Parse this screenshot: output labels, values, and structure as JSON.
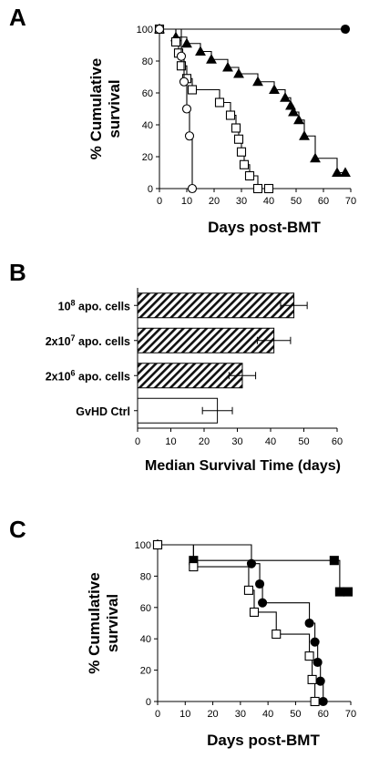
{
  "panels": {
    "a": {
      "letter": "A"
    },
    "b": {
      "letter": "B"
    },
    "c": {
      "letter": "C"
    }
  },
  "chart_data": [
    {
      "id": "A",
      "type": "line",
      "step": true,
      "xlabel": "Days post-BMT",
      "ylabel": "% Cumulative survival",
      "xlim": [
        0,
        70
      ],
      "ylim": [
        0,
        100
      ],
      "xticks": [
        0,
        10,
        20,
        30,
        40,
        50,
        60,
        70
      ],
      "yticks": [
        0,
        20,
        40,
        60,
        80,
        100
      ],
      "series": [
        {
          "marker": "filled-circle",
          "x": [
            0,
            68
          ],
          "y": [
            100,
            100
          ]
        },
        {
          "marker": "filled-triangle",
          "x": [
            0,
            6,
            10,
            15,
            19,
            25,
            29,
            36,
            42,
            46,
            48,
            49,
            51,
            53,
            57,
            65,
            68
          ],
          "y": [
            100,
            95,
            91,
            86,
            81,
            76,
            72,
            67,
            62,
            57,
            52,
            48,
            43,
            33,
            19,
            10,
            10
          ]
        },
        {
          "marker": "open-square",
          "x": [
            0,
            6,
            7,
            8,
            10,
            12,
            22,
            26,
            28,
            29,
            30,
            31,
            33,
            36,
            40
          ],
          "y": [
            100,
            92,
            85,
            77,
            69,
            62,
            54,
            46,
            38,
            31,
            23,
            15,
            8,
            0,
            0
          ]
        },
        {
          "marker": "open-circle",
          "x": [
            0,
            8,
            9,
            10,
            11,
            12
          ],
          "y": [
            100,
            83,
            67,
            50,
            33,
            0
          ]
        }
      ]
    },
    {
      "id": "B",
      "type": "bar",
      "orientation": "horizontal",
      "xlabel": "Median Survival Time (days)",
      "xlim": [
        0,
        60
      ],
      "xticks": [
        0,
        10,
        20,
        30,
        40,
        50,
        60
      ],
      "categories": [
        {
          "pre": "10",
          "sup": "8",
          "post": " apo. cells"
        },
        {
          "pre": "2x10",
          "sup": "7",
          "post": " apo. cells"
        },
        {
          "pre": "2x10",
          "sup": "6",
          "post": " apo. cells"
        },
        {
          "pre": "GvHD Ctrl",
          "sup": "",
          "post": ""
        }
      ],
      "values": [
        47,
        41,
        31.5,
        24
      ],
      "errors": [
        4,
        5,
        4,
        4.5
      ],
      "fills": [
        "hatched",
        "hatched",
        "hatched",
        "white"
      ]
    },
    {
      "id": "C",
      "type": "line",
      "step": true,
      "xlabel": "Days post-BMT",
      "ylabel": "% Cumulative survival",
      "xlim": [
        0,
        70
      ],
      "ylim": [
        0,
        100
      ],
      "xticks": [
        0,
        10,
        20,
        30,
        40,
        50,
        60,
        70
      ],
      "yticks": [
        0,
        20,
        40,
        60,
        80,
        100
      ],
      "series": [
        {
          "marker": "filled-square",
          "x": [
            0,
            13,
            64,
            66,
            69
          ],
          "y": [
            100,
            90,
            90,
            70,
            70
          ]
        },
        {
          "marker": "filled-circle",
          "x": [
            0,
            34,
            37,
            38,
            55,
            57,
            58,
            59,
            60
          ],
          "y": [
            100,
            88,
            75,
            63,
            50,
            38,
            25,
            13,
            0
          ]
        },
        {
          "marker": "open-square",
          "x": [
            0,
            13,
            33,
            35,
            43,
            55,
            56,
            57
          ],
          "y": [
            100,
            86,
            71,
            57,
            43,
            29,
            14,
            0
          ]
        }
      ]
    }
  ]
}
